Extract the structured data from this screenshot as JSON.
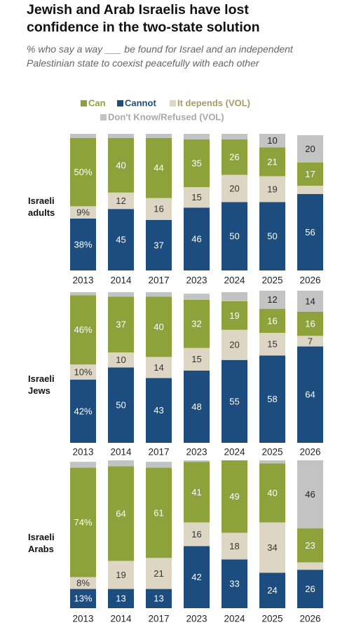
{
  "chart_data": {
    "type": "bar",
    "stacked": true,
    "title": "Jewish and Arab Israelis have lost confidence in the two-state solution",
    "subtitle": "% who say a way ___ be found for Israel and an independent Palestinian state to coexist peacefully with each other",
    "categories": [
      "2013",
      "2014",
      "2017",
      "2023",
      "2024",
      "2025",
      "2026"
    ],
    "ylim": [
      0,
      100
    ],
    "series": [
      {
        "name": "Cannot",
        "color": "#1d4c7e",
        "legend_color": "#1d4c7e"
      },
      {
        "name": "It depends (VOL)",
        "color": "#ddd6c4",
        "legend_color": "#a39b66"
      },
      {
        "name": "Can",
        "color": "#8da23a",
        "legend_color": "#8da23a"
      },
      {
        "name": "Don't Know/Refused (VOL)",
        "color": "#c3c3c3",
        "legend_color": "#a8a8a8"
      }
    ],
    "panels": [
      {
        "label": "Israeli adults",
        "series": [
          {
            "values": [
              38,
              45,
              37,
              46,
              50,
              50,
              56
            ],
            "value_labels": [
              "38%",
              "45",
              "37",
              "46",
              "50",
              "50",
              "56"
            ]
          },
          {
            "values": [
              9,
              12,
              16,
              15,
              20,
              19,
              6
            ],
            "value_labels": [
              "9%",
              "12",
              "16",
              "15",
              "20",
              "19",
              null
            ]
          },
          {
            "values": [
              50,
              40,
              44,
              35,
              26,
              21,
              17
            ],
            "value_labels": [
              "50%",
              "40",
              "44",
              "35",
              "26",
              "21",
              "17"
            ]
          },
          {
            "values": [
              3,
              3,
              3,
              4,
              4,
              10,
              20
            ],
            "value_labels": [
              null,
              null,
              null,
              null,
              null,
              "10",
              "20"
            ]
          }
        ]
      },
      {
        "label": "Israeli Jews",
        "series": [
          {
            "values": [
              42,
              50,
              43,
              48,
              55,
              58,
              64
            ],
            "value_labels": [
              "42%",
              "50",
              "43",
              "48",
              "55",
              "58",
              "64"
            ]
          },
          {
            "values": [
              10,
              10,
              14,
              15,
              20,
              15,
              7
            ],
            "value_labels": [
              "10%",
              "10",
              "14",
              "15",
              "20",
              "15",
              "7"
            ]
          },
          {
            "values": [
              46,
              37,
              40,
              32,
              19,
              16,
              16
            ],
            "value_labels": [
              "46%",
              "37",
              "40",
              "32",
              "19",
              "16",
              "16"
            ]
          },
          {
            "values": [
              2,
              3,
              3,
              4,
              6,
              12,
              14
            ],
            "value_labels": [
              null,
              null,
              null,
              null,
              null,
              "12",
              "14"
            ]
          }
        ]
      },
      {
        "label": "Israeli Arabs",
        "series": [
          {
            "values": [
              13,
              13,
              13,
              42,
              33,
              24,
              26
            ],
            "value_labels": [
              "13%",
              "13",
              "13",
              "42",
              "33",
              "24",
              "26"
            ]
          },
          {
            "values": [
              8,
              19,
              21,
              16,
              18,
              34,
              5
            ],
            "value_labels": [
              "8%",
              "19",
              "21",
              "16",
              "18",
              "34",
              null
            ]
          },
          {
            "values": [
              74,
              64,
              61,
              41,
              49,
              40,
              23
            ],
            "value_labels": [
              "74%",
              "64",
              "61",
              "41",
              "49",
              "40",
              "23"
            ]
          },
          {
            "values": [
              4,
              4,
              4,
              1,
              0,
              2,
              46
            ],
            "value_labels": [
              null,
              null,
              null,
              null,
              null,
              null,
              "46"
            ]
          }
        ]
      }
    ]
  }
}
